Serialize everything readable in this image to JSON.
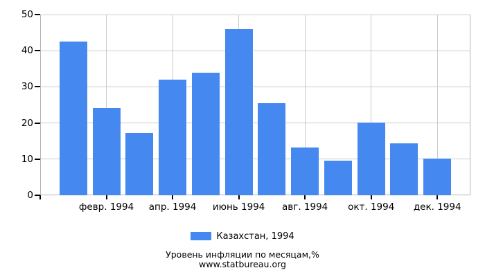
{
  "chart_data": {
    "type": "bar",
    "title": "Уровень инфляции по месяцам,%",
    "subtitle": "www.statbureau.org",
    "legend": [
      {
        "label": "Казахстан, 1994",
        "color": "#4589F0"
      }
    ],
    "legend_position": "bottom",
    "series": [
      {
        "name": "Казахстан, 1994",
        "values": [
          42.6,
          24.2,
          17.3,
          31.9,
          33.9,
          45.9,
          25.4,
          13.3,
          9.6,
          20.2,
          14.3,
          10.2
        ]
      }
    ],
    "num_bars": 12,
    "x_tick_labels": [
      "февр. 1994",
      "апр. 1994",
      "июнь 1994",
      "авг. 1994",
      "окт. 1994",
      "дек. 1994"
    ],
    "x_tick_slots": [
      2,
      4,
      6,
      8,
      10,
      12
    ],
    "y_ticks": [
      0,
      10,
      20,
      30,
      40,
      50
    ],
    "ylim": [
      0,
      50
    ],
    "grid": true,
    "colors": {
      "bar": "#4589F0",
      "gridline": "#cacaca",
      "axis": "#b3b3b3",
      "tick": "#000000",
      "text": "#000000"
    }
  }
}
